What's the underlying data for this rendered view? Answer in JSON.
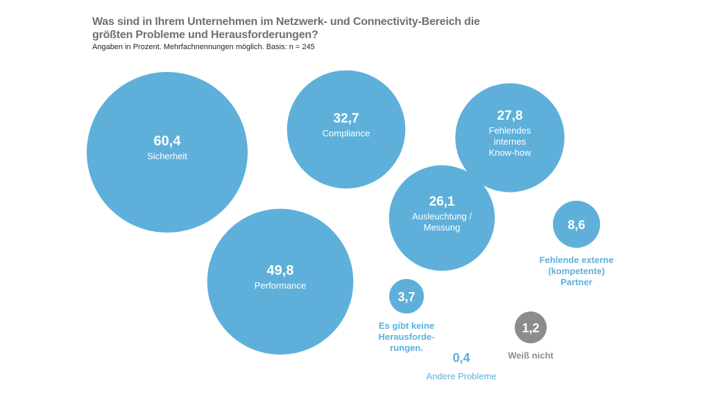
{
  "chart_data": {
    "type": "bubble",
    "title": "Was sind in Ihrem Unternehmen im Netzwerk- und Connectivity-Bereich die größten Probleme und Herausforderungen?",
    "subtitle": "Angaben in Prozent. Mehrfachnennungen möglich. Basis: n = 245",
    "unit": "%",
    "colors": {
      "primary": "#5eb0da",
      "neutral": "#8c8c8c"
    },
    "items": [
      {
        "label": "Sicherheit",
        "value": 60.4,
        "display": "60,4",
        "color": "primary"
      },
      {
        "label": "Performance",
        "value": 49.8,
        "display": "49,8",
        "color": "primary"
      },
      {
        "label": "Compliance",
        "value": 32.7,
        "display": "32,7",
        "color": "primary"
      },
      {
        "label": "Fehlendes internes Know-how",
        "value": 27.8,
        "display": "27,8",
        "color": "primary"
      },
      {
        "label": "Ausleuchtung / Messung",
        "value": 26.1,
        "display": "26,1",
        "color": "primary"
      },
      {
        "label": "Fehlende externe (kompetente) Partner",
        "value": 8.6,
        "display": "8,6",
        "color": "primary"
      },
      {
        "label": "Es gibt keine Herausforde-rungen.",
        "value": 3.7,
        "display": "3,7",
        "color": "primary"
      },
      {
        "label": "Weiß nicht",
        "value": 1.2,
        "display": "1,2",
        "color": "neutral"
      },
      {
        "label": "Andere Probleme",
        "value": 0.4,
        "display": "0,4",
        "color": "primary"
      }
    ]
  }
}
